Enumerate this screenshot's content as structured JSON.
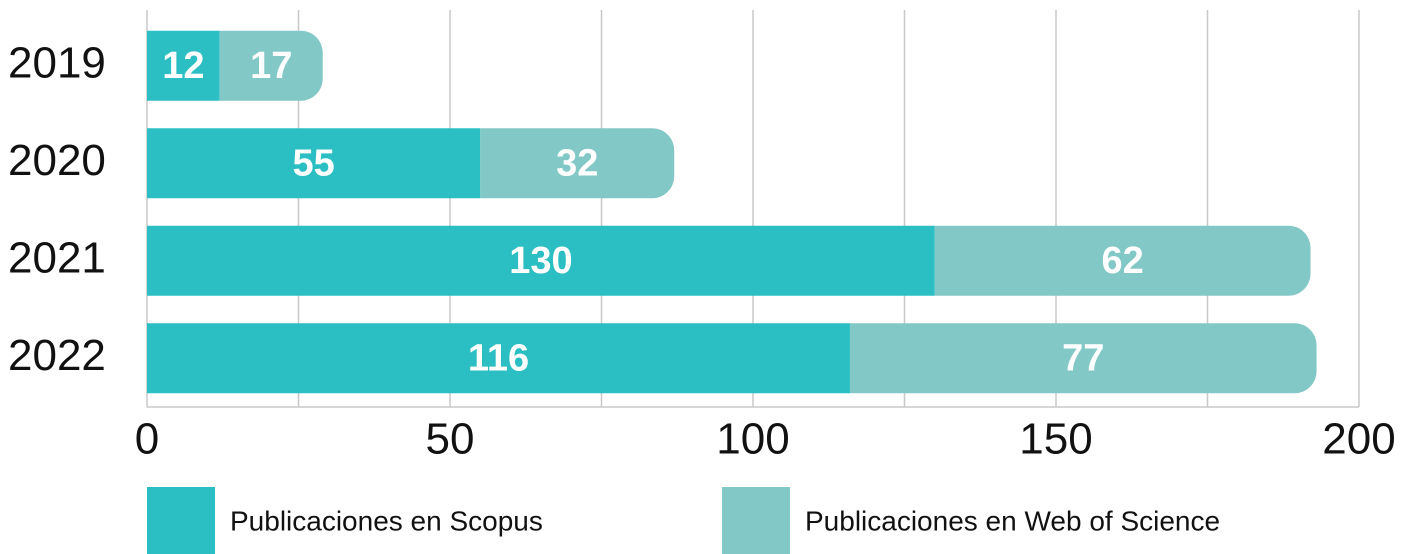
{
  "chart_data": {
    "type": "stacked-barh",
    "categories": [
      "2019",
      "2020",
      "2021",
      "2022"
    ],
    "series": [
      {
        "name": "Publicaciones en Scopus",
        "color": "#2bbfc4",
        "values": [
          12,
          55,
          130,
          116
        ]
      },
      {
        "name": "Publicaciones en Web of Science",
        "color": "#82c8c6",
        "values": [
          17,
          32,
          62,
          77
        ]
      }
    ],
    "xlim": [
      0,
      200
    ],
    "xticks": [
      0,
      50,
      100,
      150,
      200
    ],
    "xgrid": [
      0,
      25,
      50,
      75,
      100,
      125,
      150,
      175,
      200
    ],
    "grid": true,
    "legend": "bottom"
  }
}
